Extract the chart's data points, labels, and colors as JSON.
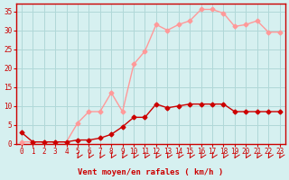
{
  "x": [
    0,
    1,
    2,
    3,
    4,
    5,
    6,
    7,
    8,
    9,
    10,
    11,
    12,
    13,
    14,
    15,
    16,
    17,
    18,
    19,
    20,
    21,
    22,
    23
  ],
  "moyen": [
    3,
    0.5,
    0.5,
    0.5,
    0.5,
    1,
    1,
    1.5,
    2.5,
    4.5,
    7,
    7,
    10.5,
    9.5,
    10,
    10.5,
    10.5,
    10.5,
    10.5,
    8.5,
    8.5,
    8.5,
    8.5,
    8.5
  ],
  "rafales": [
    0.5,
    0.5,
    0.5,
    0.5,
    0.5,
    5.5,
    8.5,
    8.5,
    13.5,
    8.5,
    21,
    24.5,
    31.5,
    30,
    31.5,
    32.5,
    35.5,
    35.5,
    34.5,
    31,
    31.5,
    32.5,
    29.5,
    29.5
  ],
  "ylim": [
    0,
    37
  ],
  "xlim": [
    -0.5,
    23.5
  ],
  "yticks": [
    0,
    5,
    10,
    15,
    20,
    25,
    30,
    35
  ],
  "xticks": [
    0,
    1,
    2,
    3,
    4,
    5,
    6,
    7,
    8,
    9,
    10,
    11,
    12,
    13,
    14,
    15,
    16,
    17,
    18,
    19,
    20,
    21,
    22,
    23
  ],
  "xlabel": "Vent moyen/en rafales ( km/h )",
  "bg_color": "#d6f0f0",
  "grid_color": "#b0d8d8",
  "line_moyen_color": "#cc0000",
  "line_rafales_color": "#ff9999",
  "marker_moyen_color": "#cc0000",
  "marker_rafales_color": "#ff9999",
  "axis_color": "#cc0000",
  "tick_color": "#cc0000",
  "xlabel_color": "#cc0000",
  "arrow_color": "#cc0000"
}
